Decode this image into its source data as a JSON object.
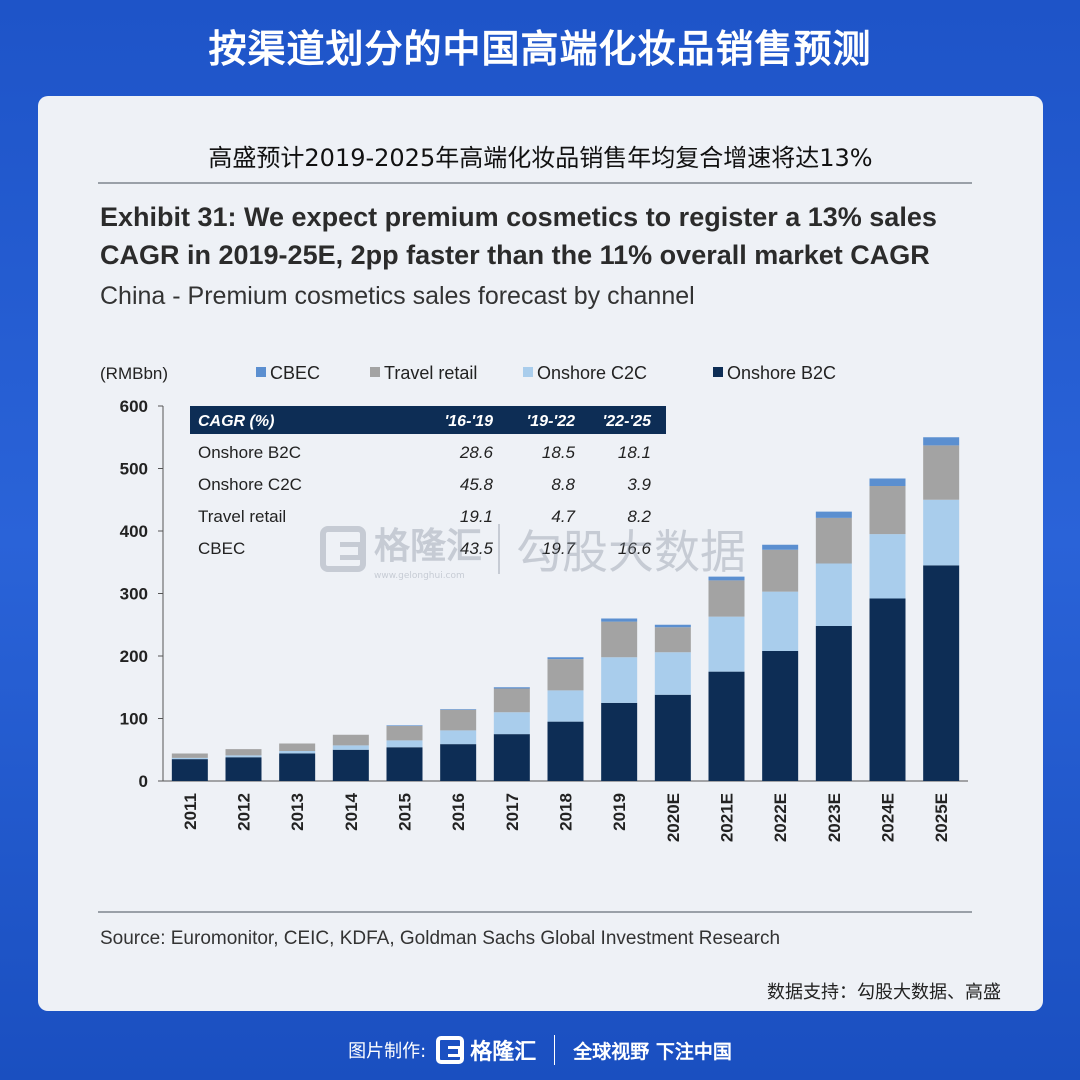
{
  "header": {
    "title": "按渠道划分的中国高端化妆品销售预测"
  },
  "card": {
    "subtitle": "高盛预计2019-2025年高端化妆品销售年均复合增速将达13%",
    "exhibit_line1": "Exhibit 31: We expect premium cosmetics to register a 13% sales",
    "exhibit_line2": "CAGR in 2019-25E, 2pp faster than the 11% overall market CAGR",
    "exhibit_sub": "China - Premium cosmetics sales forecast by channel",
    "source": "Source: Euromonitor, CEIC, KDFA, Goldman Sachs Global Investment Research",
    "support": "数据支持：勾股大数据、高盛"
  },
  "watermark": {
    "brand": "格隆汇",
    "url": "www.gelonghui.com",
    "right": "勾股大数据"
  },
  "footer": {
    "label": "图片制作:",
    "brand": "格隆汇",
    "slogan": "全球视野 下注中国"
  },
  "colors": {
    "onshore_b2c": "#0d2d55",
    "onshore_c2c": "#a9cdec",
    "travel_retail": "#a3a3a3",
    "cbec": "#5b8fd0",
    "cagr_header_bg": "#0d2d55"
  },
  "chart_data": {
    "type": "bar",
    "stacked": true,
    "ylabel": "(RMBbn)",
    "ylim": [
      0,
      600
    ],
    "yticks": [
      0,
      100,
      200,
      300,
      400,
      500,
      600
    ],
    "categories": [
      "2011",
      "2012",
      "2013",
      "2014",
      "2015",
      "2016",
      "2017",
      "2018",
      "2019",
      "2020E",
      "2021E",
      "2022E",
      "2023E",
      "2024E",
      "2025E"
    ],
    "legend_position": "top",
    "series": [
      {
        "name": "Onshore B2C",
        "color": "#0d2d55",
        "values": [
          35,
          38,
          44,
          50,
          54,
          59,
          75,
          95,
          125,
          138,
          175,
          208,
          248,
          292,
          345
        ]
      },
      {
        "name": "Onshore C2C",
        "color": "#a9cdec",
        "values": [
          2,
          3,
          4,
          7,
          11,
          22,
          35,
          50,
          73,
          68,
          88,
          95,
          100,
          103,
          105
        ]
      },
      {
        "name": "Travel retail",
        "color": "#a3a3a3",
        "values": [
          7,
          10,
          12,
          17,
          23,
          33,
          38,
          50,
          57,
          40,
          58,
          67,
          73,
          77,
          87
        ]
      },
      {
        "name": "CBEC",
        "color": "#5b8fd0",
        "values": [
          0,
          0,
          0,
          0,
          1,
          1,
          2,
          3,
          5,
          4,
          6,
          8,
          10,
          12,
          13
        ]
      }
    ],
    "cagr_table": {
      "header": [
        "CAGR (%)",
        "'16-'19",
        "'19-'22",
        "'22-'25"
      ],
      "rows": [
        [
          "Onshore B2C",
          "28.6",
          "18.5",
          "18.1"
        ],
        [
          "Onshore C2C",
          "45.8",
          "8.8",
          "3.9"
        ],
        [
          "Travel retail",
          "19.1",
          "4.7",
          "8.2"
        ],
        [
          "CBEC",
          "43.5",
          "19.7",
          "16.6"
        ]
      ]
    }
  }
}
